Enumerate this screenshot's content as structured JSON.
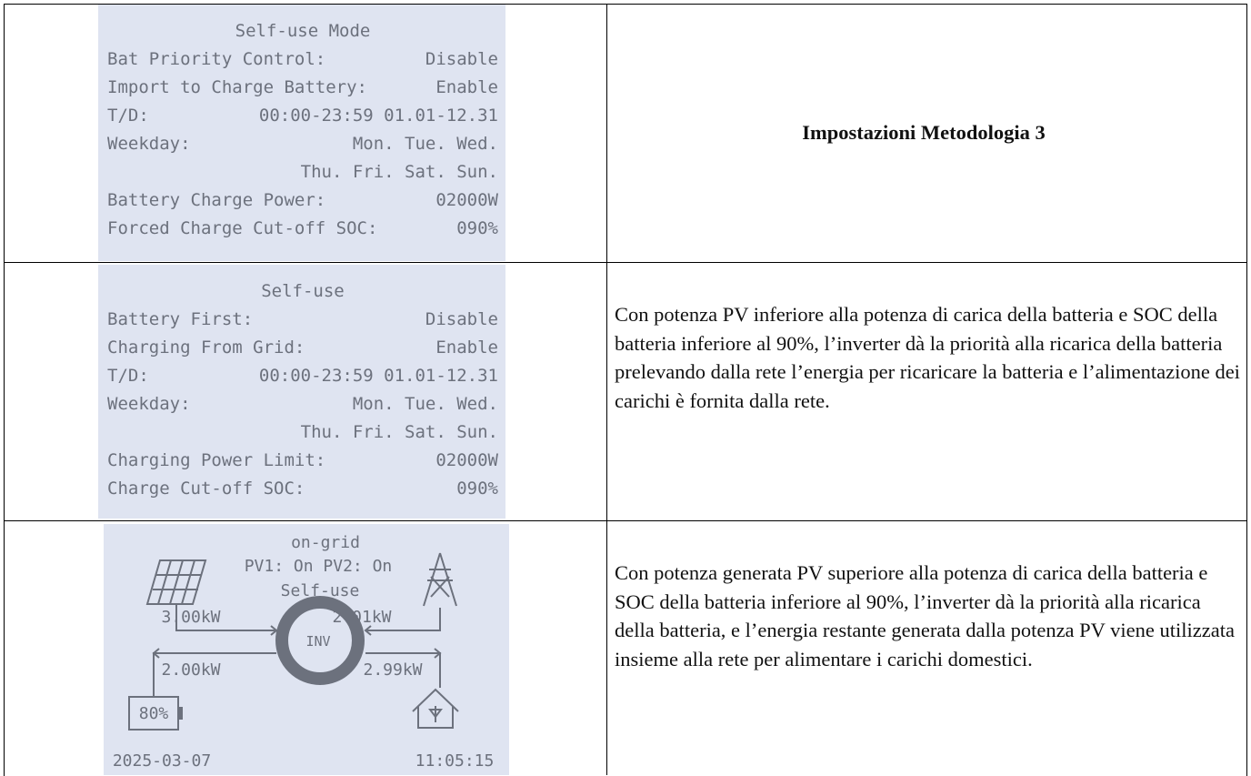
{
  "table": {
    "rows": [
      {
        "screen": {
          "title": "Self-use Mode",
          "lines": [
            {
              "label": "Bat Priority Control:",
              "value": "Disable"
            },
            {
              "label": "Import to Charge Battery:",
              "value": "Enable"
            },
            {
              "label": "T/D:",
              "value": "00:00-23:59 01.01-12.31"
            },
            {
              "label": "Weekday:",
              "value": "Mon. Tue. Wed."
            },
            {
              "value": "Thu. Fri. Sat. Sun."
            },
            {
              "label": "Battery Charge Power:",
              "value": "02000W"
            },
            {
              "label": "Forced Charge Cut-off SOC:",
              "value": "090%"
            }
          ]
        },
        "heading": "Impostazioni Metodologia 3"
      },
      {
        "screen": {
          "title": "Self-use",
          "lines": [
            {
              "label": "Battery First:",
              "value": "Disable"
            },
            {
              "label": "Charging From Grid:",
              "value": "Enable"
            },
            {
              "label": "T/D:",
              "value": "00:00-23:59 01.01-12.31"
            },
            {
              "label": "Weekday:",
              "value": "Mon. Tue. Wed."
            },
            {
              "value": "Thu. Fri. Sat. Sun."
            },
            {
              "label": "Charging Power Limit:",
              "value": "02000W"
            },
            {
              "label": "Charge Cut-off SOC:",
              "value": "090%"
            }
          ]
        },
        "text": "Con potenza PV inferiore alla potenza di carica della batteria e SOC della batteria inferiore al 90%, l’inverter dà la priorità alla ricarica della batteria prelevando dalla rete l’energia per ricaricare la batteria e l’alimentazione dei carichi è fornita dalla rete."
      },
      {
        "screen": {
          "mode": "on-grid",
          "pv": "PV1: On PV2: On",
          "work": "Self-use",
          "pv_power": "3.00kW",
          "grid_power": "2.01kW",
          "battery_power": "2.00kW",
          "load_power": "2.99kW",
          "inverter": "INV",
          "soc": "80%",
          "date": "2025-03-07",
          "time": "11:05:15"
        },
        "text": "Con potenza generata PV superiore alla potenza di carica della batteria e SOC della batteria inferiore al 90%, l’inverter dà la priorità alla ricarica della batteria, e l’energia restante generata dalla potenza PV viene utilizzata insieme alla rete per alimentare i carichi domestici."
      }
    ]
  }
}
